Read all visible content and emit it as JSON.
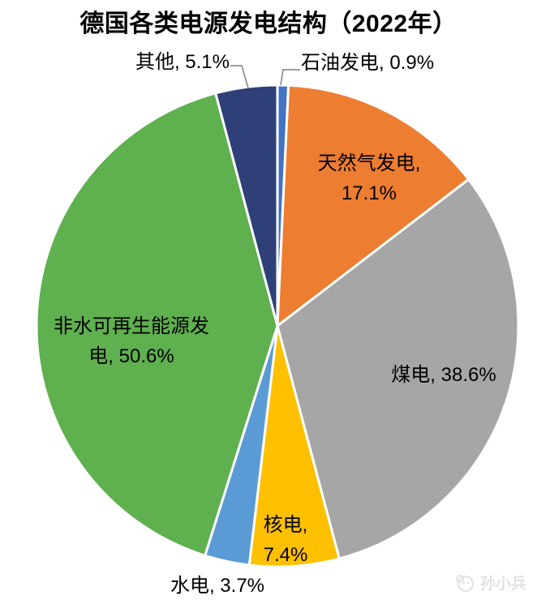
{
  "title": "德国各类电源发电结构（2022年）",
  "watermark": {
    "text": "孙小兵",
    "icon": "logo-circle-icon",
    "color": "#E2E2E2"
  },
  "chart_data": {
    "type": "pie",
    "title": "德国各类电源发电结构（2022年）",
    "unit": "%",
    "start_angle_deg": 0,
    "direction": "clockwise",
    "legend": "none",
    "background": "#FFFFFF",
    "slices": [
      {
        "id": "oil",
        "name": "石油发电",
        "value": 0.9,
        "color": "#4472C4",
        "display": "石油发电, 0.9%",
        "label_position": "outside-leader"
      },
      {
        "id": "gas",
        "name": "天然气发电",
        "value": 17.1,
        "color": "#ED7D31",
        "display": "天然气发电,\n17.1%",
        "label_position": "inside"
      },
      {
        "id": "coal",
        "name": "煤电",
        "value": 38.6,
        "color": "#A6A6A6",
        "display": "煤电, 38.6%",
        "label_position": "inside"
      },
      {
        "id": "nuclear",
        "name": "核电",
        "value": 7.4,
        "color": "#FFC000",
        "display": "核电,\n7.4%",
        "label_position": "inside"
      },
      {
        "id": "hydro",
        "name": "水电",
        "value": 3.7,
        "color": "#5B9BD5",
        "display": "水电, 3.7%",
        "label_position": "outside"
      },
      {
        "id": "renewables",
        "name": "非水可再生能源发电",
        "value": 50.6,
        "color": "#5FB04E",
        "display": "非水可再生能源发\n电, 50.6%",
        "label_position": "inside"
      },
      {
        "id": "other",
        "name": "其他",
        "value": 5.1,
        "color": "#2E4077",
        "display": "其他, 5.1%",
        "label_position": "outside-leader"
      }
    ]
  }
}
